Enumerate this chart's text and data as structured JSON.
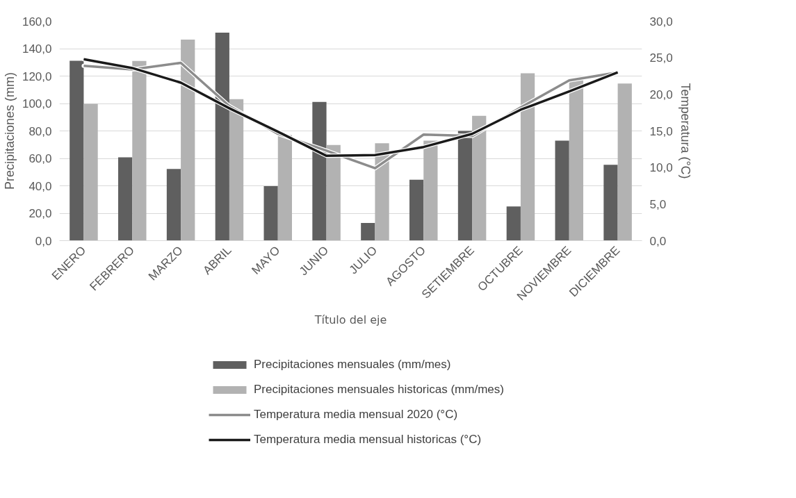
{
  "chart_data": {
    "type": "bar",
    "xlabel": "Título del eje",
    "ylabel": "Precipitaciones (mm)",
    "y2label": "Temperatura (°C)",
    "categories": [
      "ENERO",
      "FEBRERO",
      "MARZO",
      "ABRIL",
      "MAYO",
      "JUNIO",
      "JULIO",
      "AGOSTO",
      "SETIEMBRE",
      "OCTUBRE",
      "NOVIEMBRE",
      "DICIEMBRE"
    ],
    "series": [
      {
        "name": "Precipitaciones mensuales (mm/mes)",
        "color": "#5f5f5f",
        "values": [
          131.2,
          60.8,
          52.3,
          151.6,
          39.7,
          101.2,
          12.9,
          44.4,
          80.0,
          25.0,
          72.9,
          55.3
        ]
      },
      {
        "name": "Precipitaciones mensuales historicas (mm/mes)",
        "color": "#b2b2b2",
        "values": [
          99.8,
          131.0,
          146.6,
          103.2,
          77.0,
          69.8,
          71.0,
          72.9,
          91.0,
          122.0,
          117.0,
          114.6
        ]
      },
      {
        "name": "Temperatura media mensual 2020 (°C)",
        "type": "line",
        "axis": "y2",
        "color": "#8c8c8c",
        "values": [
          23.9,
          23.4,
          24.3,
          18.4,
          14.6,
          12.3,
          9.9,
          14.5,
          14.3,
          18.2,
          21.9,
          23.0
        ]
      },
      {
        "name": "Temperatura media mensual historicas (°C)",
        "type": "line",
        "axis": "y2",
        "color": "#1a1a1a",
        "values": [
          24.8,
          23.6,
          21.6,
          18.1,
          14.9,
          11.6,
          11.7,
          12.8,
          14.6,
          17.9,
          20.4,
          23.0
        ]
      }
    ],
    "ylim": [
      0,
      160
    ],
    "yticks": [
      {
        "value": 0,
        "label": "0,0"
      },
      {
        "value": 20,
        "label": "20,0"
      },
      {
        "value": 40,
        "label": "40,0"
      },
      {
        "value": 60,
        "label": "60,0"
      },
      {
        "value": 80,
        "label": "80,0"
      },
      {
        "value": 100,
        "label": "100,0"
      },
      {
        "value": 120,
        "label": "120,0"
      },
      {
        "value": 140,
        "label": "140,0"
      },
      {
        "value": 160,
        "label": "160,0"
      }
    ],
    "y2lim": [
      0,
      30
    ],
    "y2ticks": [
      {
        "value": 0,
        "label": "0,0"
      },
      {
        "value": 5,
        "label": "5,0"
      },
      {
        "value": 10,
        "label": "10,0"
      },
      {
        "value": 15,
        "label": "15,0"
      },
      {
        "value": 20,
        "label": "20,0"
      },
      {
        "value": 25,
        "label": "25,0"
      },
      {
        "value": 30,
        "label": "30,0"
      }
    ],
    "grid": "y",
    "legend": "bottom",
    "marker": "none",
    "line_style": "solid"
  }
}
